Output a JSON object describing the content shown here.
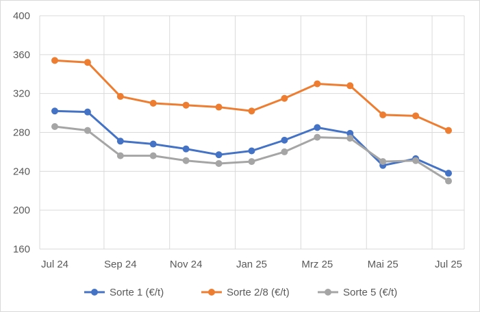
{
  "chart_data": {
    "type": "line",
    "title": "",
    "xlabel": "",
    "ylabel": "",
    "ylim": [
      160,
      400
    ],
    "y_ticks": [
      160,
      200,
      240,
      280,
      320,
      360,
      400
    ],
    "x_tick_labels": [
      "Jul 24",
      "Sep 24",
      "Nov 24",
      "Jan 25",
      "Mrz 25",
      "Mai 25",
      "Jul 25"
    ],
    "n_points": 13,
    "grid": true,
    "legend_position": "bottom",
    "series": [
      {
        "name": "Sorte 1 (€/t)",
        "color": "#4472c4",
        "values": [
          302,
          301,
          271,
          268,
          263,
          257,
          261,
          272,
          285,
          279,
          246,
          253,
          238
        ]
      },
      {
        "name": "Sorte 2/8 (€/t)",
        "color": "#ed7d31",
        "values": [
          354,
          352,
          317,
          310,
          308,
          306,
          302,
          315,
          330,
          328,
          298,
          297,
          282
        ]
      },
      {
        "name": "Sorte 5 (€/t)",
        "color": "#a5a5a5",
        "values": [
          286,
          282,
          256,
          256,
          251,
          248,
          250,
          260,
          275,
          274,
          250,
          251,
          230
        ]
      }
    ]
  }
}
